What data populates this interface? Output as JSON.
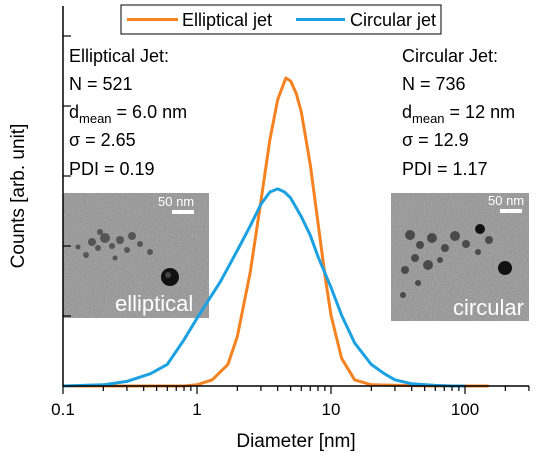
{
  "chart_data": {
    "type": "line",
    "title": "",
    "xlabel": "Diameter [nm]",
    "ylabel": "Counts [arb. unit]",
    "x_scale": "log",
    "xlim": [
      0.1,
      300
    ],
    "ylim": [
      0,
      1
    ],
    "x_ticks": [
      {
        "value": 0.1,
        "label": "0.1"
      },
      {
        "value": 1,
        "label": "1"
      },
      {
        "value": 10,
        "label": "10"
      },
      {
        "value": 100,
        "label": "100"
      }
    ],
    "y_tick_labels_shown": false,
    "grid": false,
    "legend_position": "top-center",
    "series": [
      {
        "name": "Elliptical jet",
        "color": "#f58220",
        "x": [
          0.1,
          0.8,
          1.0,
          1.3,
          1.7,
          2.0,
          2.5,
          3.0,
          3.5,
          4.0,
          4.6,
          5.0,
          5.5,
          6.0,
          7.0,
          8.0,
          9.0,
          10.0,
          12.0,
          15.0,
          20.0,
          60.0,
          150.0
        ],
        "y": [
          0.0,
          0.0,
          0.004,
          0.02,
          0.07,
          0.16,
          0.37,
          0.6,
          0.8,
          0.93,
          1.0,
          0.99,
          0.95,
          0.89,
          0.72,
          0.53,
          0.36,
          0.23,
          0.09,
          0.02,
          0.004,
          0.0,
          0.0
        ]
      },
      {
        "name": "Circular jet",
        "color": "#1ba1e2",
        "x": [
          0.1,
          0.2,
          0.3,
          0.45,
          0.6,
          0.8,
          1.0,
          1.5,
          2.0,
          2.5,
          3.0,
          3.5,
          4.0,
          4.5,
          5.0,
          6.0,
          7.0,
          8.0,
          10.0,
          12.0,
          15.0,
          20.0,
          25.0,
          30.0,
          40.0,
          60.0,
          80.0,
          100.0
        ],
        "y": [
          0.0,
          0.004,
          0.015,
          0.04,
          0.07,
          0.15,
          0.22,
          0.34,
          0.44,
          0.52,
          0.59,
          0.63,
          0.64,
          0.63,
          0.61,
          0.55,
          0.49,
          0.42,
          0.32,
          0.23,
          0.14,
          0.07,
          0.04,
          0.02,
          0.007,
          0.002,
          0.0,
          0.0
        ]
      }
    ],
    "annotations": {
      "left": {
        "heading": "Elliptical Jet:",
        "n": "N = 521",
        "dmean_prefix": "d",
        "dmean_sub": "mean",
        "dmean_value": " = 6.0 nm",
        "sigma_symbol": "σ",
        "sigma_value": " = 2.65",
        "pdi": "PDI = 0.19",
        "image_label": "elliptical",
        "scale_bar": "50 nm"
      },
      "right": {
        "heading": "Circular Jet:",
        "n": "N = 736",
        "dmean_prefix": "d",
        "dmean_sub": "mean",
        "dmean_value": " = 12 nm",
        "sigma_symbol": "σ",
        "sigma_value": " = 12.9",
        "pdi": "PDI = 1.17",
        "image_label": "circular",
        "scale_bar": "50 nm"
      }
    }
  }
}
